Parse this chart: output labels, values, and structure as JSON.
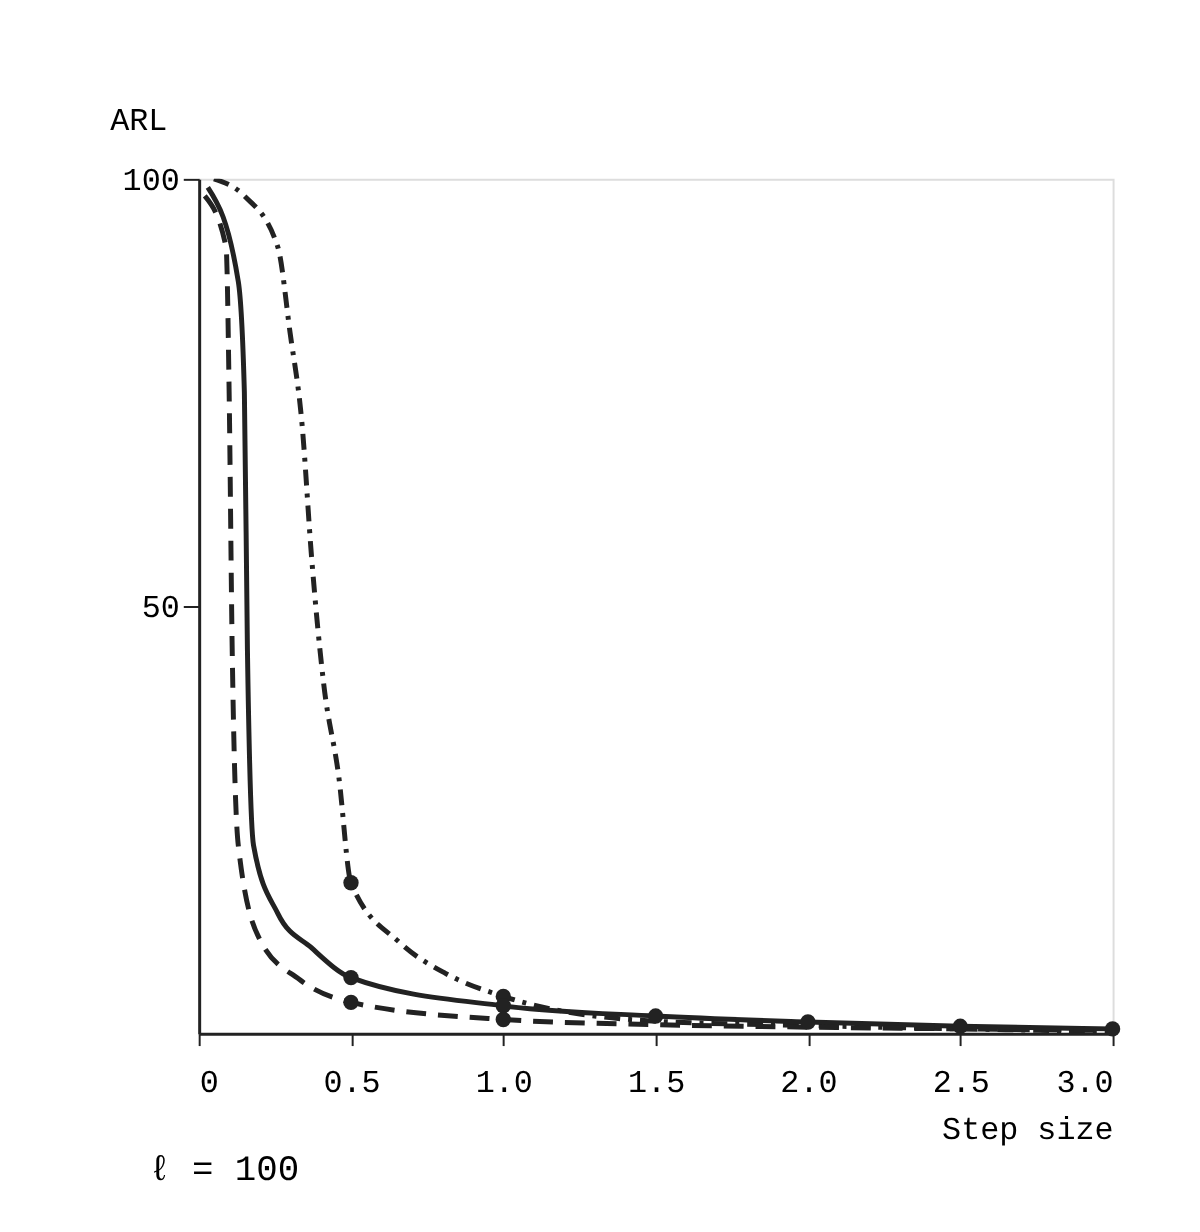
{
  "chart_data": {
    "type": "line",
    "xlabel": "Step size",
    "ylabel": "ARL",
    "annotations": [
      "ℓ = 100"
    ],
    "xlim": [
      0,
      3.0
    ],
    "ylim": [
      0,
      100
    ],
    "xticks": [
      {
        "value": 0,
        "label": "0"
      },
      {
        "value": 0.5,
        "label": "0.5"
      },
      {
        "value": 1,
        "label": "1.0"
      },
      {
        "value": 1.5,
        "label": "1.5"
      },
      {
        "value": 2,
        "label": "2.0"
      },
      {
        "value": 2.5,
        "label": "2.5"
      },
      {
        "value": 3,
        "label": "3.0"
      }
    ],
    "yticks": [
      50,
      100
    ],
    "grid": false,
    "series": [
      {
        "line_style": "dotted",
        "color": "#222222",
        "x": [
          0.05,
          0.15,
          0.26,
          0.3,
          0.34,
          0.37,
          0.41,
          0.46,
          0.5,
          0.66,
          0.81,
          1.0,
          1.5,
          2.0,
          2.5,
          3.0
        ],
        "values": [
          100,
          98,
          92,
          82,
          71,
          56,
          41,
          30,
          17.6,
          10.6,
          7,
          4.3,
          1.4,
          0.9,
          0.5,
          0.2
        ]
      },
      {
        "line_style": "solid",
        "color": "#222222",
        "x": [
          0.03,
          0.13,
          0.15,
          0.16,
          0.18,
          0.26,
          0.37,
          0.5,
          1.0,
          1.5,
          2.0,
          2.5,
          3.0
        ],
        "values": [
          99,
          88,
          75,
          45,
          22,
          14,
          10,
          6.5,
          3.2,
          2.0,
          1.3,
          0.8,
          0.5
        ]
      },
      {
        "line_style": "dashed",
        "color": "#222222",
        "x": [
          0.02,
          0.09,
          0.1,
          0.11,
          0.13,
          0.2,
          0.33,
          0.5,
          1.0,
          1.5,
          2.0,
          2.5,
          3.0
        ],
        "values": [
          98,
          92,
          75,
          45,
          22,
          11,
          6.3,
          3.6,
          1.6,
          1.0,
          0.7,
          0.5,
          0.3
        ]
      },
      {
        "type": "scatter",
        "marker": "circle",
        "color": "#222222",
        "x": [
          0.5,
          1.0
        ],
        "values": [
          17.6,
          4.3
        ]
      },
      {
        "type": "scatter",
        "marker": "circle",
        "color": "#222222",
        "x": [
          0.5,
          1.0,
          1.5,
          2.0,
          2.5,
          3.0
        ],
        "values": [
          6.5,
          3.2,
          2.0,
          1.3,
          0.8,
          0.5
        ]
      },
      {
        "type": "scatter",
        "marker": "circle",
        "color": "#222222",
        "x": [
          0.5,
          1.0
        ],
        "values": [
          3.6,
          1.6
        ]
      }
    ]
  }
}
